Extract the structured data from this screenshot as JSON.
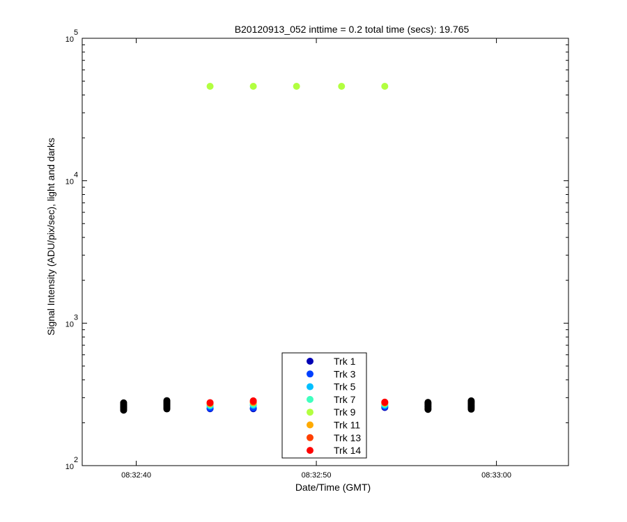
{
  "chart_data": {
    "type": "scatter",
    "title": "B20120913_052 inttime = 0.2 total time (secs): 19.765",
    "xlabel": "Date/Time (GMT)",
    "ylabel": "Signal Intensity (ADU/pix/sec), light and darks",
    "yscale": "log",
    "ylim": [
      100,
      100000
    ],
    "xlim": [
      "08:32:37",
      "08:33:04"
    ],
    "x_ticks": [
      "08:32:40",
      "08:32:50",
      "08:33:00"
    ],
    "y_ticks": [
      {
        "base": "10",
        "exp": "2",
        "value": 100
      },
      {
        "base": "10",
        "exp": "3",
        "value": 1000
      },
      {
        "base": "10",
        "exp": "4",
        "value": 10000
      },
      {
        "base": "10",
        "exp": "5",
        "value": 100000
      }
    ],
    "grid": false,
    "legend_position": "bottom-center",
    "series": [
      {
        "name": "Trk 1",
        "color": "#0000b4",
        "points": [
          {
            "x": "08:32:44.1",
            "y": 251
          },
          {
            "x": "08:32:46.5",
            "y": 251
          },
          {
            "x": "08:32:53.8",
            "y": 256
          }
        ]
      },
      {
        "name": "Trk 3",
        "color": "#0040ff",
        "points": [
          {
            "x": "08:32:44.1",
            "y": 253
          },
          {
            "x": "08:32:46.5",
            "y": 254
          },
          {
            "x": "08:32:53.8",
            "y": 259
          }
        ]
      },
      {
        "name": "Trk 5",
        "color": "#00bfff",
        "points": [
          {
            "x": "08:32:44.1",
            "y": 262
          },
          {
            "x": "08:32:46.5",
            "y": 265
          },
          {
            "x": "08:32:53.8",
            "y": 265
          }
        ]
      },
      {
        "name": "Trk 7",
        "color": "#40ffbf",
        "points": [
          {
            "x": "08:32:44.1",
            "y": 267
          },
          {
            "x": "08:32:46.5",
            "y": 270
          },
          {
            "x": "08:32:53.8",
            "y": 270
          }
        ]
      },
      {
        "name": "Trk 9",
        "color": "#b2ff40",
        "points": [
          {
            "x": "08:32:44.1",
            "y": 46000
          },
          {
            "x": "08:32:46.5",
            "y": 46000
          },
          {
            "x": "08:32:48.9",
            "y": 46000
          },
          {
            "x": "08:32:51.4",
            "y": 46000
          },
          {
            "x": "08:32:53.8",
            "y": 46000
          }
        ]
      },
      {
        "name": "Trk 11",
        "color": "#ffaa00",
        "points": [
          {
            "x": "08:32:44.1",
            "y": 272
          },
          {
            "x": "08:32:46.5",
            "y": 277
          },
          {
            "x": "08:32:53.8",
            "y": 275
          }
        ]
      },
      {
        "name": "Trk 13",
        "color": "#ff4000",
        "points": [
          {
            "x": "08:32:44.1",
            "y": 275
          },
          {
            "x": "08:32:46.5",
            "y": 281
          },
          {
            "x": "08:32:53.8",
            "y": 277
          }
        ]
      },
      {
        "name": "Trk 14",
        "color": "#ff0000",
        "points": [
          {
            "x": "08:32:44.1",
            "y": 277
          },
          {
            "x": "08:32:46.5",
            "y": 285
          },
          {
            "x": "08:32:53.8",
            "y": 279
          }
        ]
      }
    ],
    "dark_series": {
      "color": "#000000",
      "points": [
        {
          "x": "08:32:39.3",
          "y": 245
        },
        {
          "x": "08:32:39.3",
          "y": 250
        },
        {
          "x": "08:32:39.3",
          "y": 255
        },
        {
          "x": "08:32:39.3",
          "y": 260
        },
        {
          "x": "08:32:39.3",
          "y": 265
        },
        {
          "x": "08:32:39.3",
          "y": 270
        },
        {
          "x": "08:32:39.3",
          "y": 276
        },
        {
          "x": "08:32:41.7",
          "y": 250
        },
        {
          "x": "08:32:41.7",
          "y": 256
        },
        {
          "x": "08:32:41.7",
          "y": 262
        },
        {
          "x": "08:32:41.7",
          "y": 268
        },
        {
          "x": "08:32:41.7",
          "y": 274
        },
        {
          "x": "08:32:41.7",
          "y": 280
        },
        {
          "x": "08:32:41.7",
          "y": 286
        },
        {
          "x": "08:32:56.2",
          "y": 248
        },
        {
          "x": "08:32:56.2",
          "y": 253
        },
        {
          "x": "08:32:56.2",
          "y": 258
        },
        {
          "x": "08:32:56.2",
          "y": 263
        },
        {
          "x": "08:32:56.2",
          "y": 268
        },
        {
          "x": "08:32:56.2",
          "y": 273
        },
        {
          "x": "08:32:56.2",
          "y": 278
        },
        {
          "x": "08:32:58.6",
          "y": 249
        },
        {
          "x": "08:32:58.6",
          "y": 255
        },
        {
          "x": "08:32:58.6",
          "y": 261
        },
        {
          "x": "08:32:58.6",
          "y": 267
        },
        {
          "x": "08:32:58.6",
          "y": 273
        },
        {
          "x": "08:32:58.6",
          "y": 279
        },
        {
          "x": "08:32:58.6",
          "y": 285
        }
      ]
    }
  }
}
